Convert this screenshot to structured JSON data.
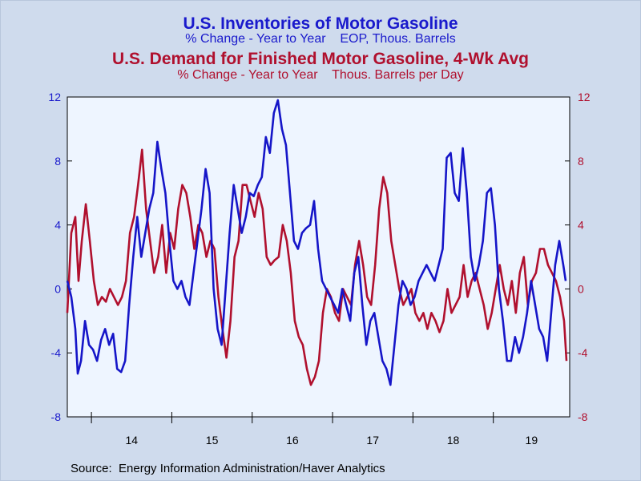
{
  "chart_data": {
    "type": "line",
    "title": "U.S. Inventories of Motor Gasoline",
    "title_subtitle": "% Change - Year to Year    EOP, Thous. Barrels",
    "title2": "U.S. Demand for Finished Motor Gasoline, 4-Wk Avg",
    "title2_subtitle": "% Change - Year to Year    Thous. Barrels per Day",
    "x_tick_labels": [
      "14",
      "15",
      "16",
      "17",
      "18",
      "19"
    ],
    "x_range": [
      2013.7,
      2019.95
    ],
    "y_left": {
      "range": [
        -8,
        12
      ],
      "ticks": [
        -8,
        -4,
        0,
        4,
        8,
        12
      ],
      "color": "#1a1acc"
    },
    "y_right": {
      "range": [
        -8,
        12
      ],
      "ticks": [
        -8,
        -4,
        0,
        4,
        8,
        12
      ],
      "color": "#b0102e"
    },
    "grid": false,
    "series": [
      {
        "color": "#1515c8",
        "axis": "left",
        "x": [
          2013.7,
          2013.75,
          2013.8,
          2013.83,
          2013.87,
          2013.92,
          2013.97,
          2014.02,
          2014.07,
          2014.12,
          2014.17,
          2014.22,
          2014.27,
          2014.32,
          2014.37,
          2014.42,
          2014.47,
          2014.52,
          2014.57,
          2014.62,
          2014.67,
          2014.72,
          2014.77,
          2014.82,
          2014.87,
          2014.92,
          2014.97,
          2015.02,
          2015.07,
          2015.12,
          2015.17,
          2015.22,
          2015.27,
          2015.32,
          2015.37,
          2015.42,
          2015.47,
          2015.52,
          2015.57,
          2015.62,
          2015.67,
          2015.72,
          2015.77,
          2015.82,
          2015.87,
          2015.92,
          2015.97,
          2016.02,
          2016.07,
          2016.12,
          2016.17,
          2016.22,
          2016.27,
          2016.32,
          2016.37,
          2016.42,
          2016.47,
          2016.52,
          2016.57,
          2016.62,
          2016.67,
          2016.72,
          2016.77,
          2016.82,
          2016.87,
          2016.92,
          2016.97,
          2017.02,
          2017.07,
          2017.12,
          2017.17,
          2017.22,
          2017.27,
          2017.32,
          2017.37,
          2017.42,
          2017.47,
          2017.52,
          2017.57,
          2017.62,
          2017.67,
          2017.72,
          2017.77,
          2017.82,
          2017.87,
          2017.92,
          2017.97,
          2018.02,
          2018.07,
          2018.12,
          2018.17,
          2018.22,
          2018.27,
          2018.32,
          2018.37,
          2018.42,
          2018.47,
          2018.52,
          2018.57,
          2018.62,
          2018.67,
          2018.72,
          2018.77,
          2018.82,
          2018.87,
          2018.92,
          2018.97,
          2019.02,
          2019.07,
          2019.12,
          2019.17,
          2019.22,
          2019.27,
          2019.32,
          2019.37,
          2019.42,
          2019.47,
          2019.52,
          2019.57,
          2019.62,
          2019.67,
          2019.72,
          2019.77,
          2019.82,
          2019.87,
          2019.9
        ],
        "values": [
          0.5,
          -0.5,
          -2.5,
          -5.3,
          -4.5,
          -2.0,
          -3.5,
          -3.8,
          -4.5,
          -3.2,
          -2.5,
          -3.5,
          -2.8,
          -5.0,
          -5.2,
          -4.5,
          -1.0,
          2.0,
          4.5,
          2.0,
          3.5,
          5.0,
          6.0,
          9.2,
          7.5,
          6.0,
          3.0,
          0.5,
          0.0,
          0.5,
          -0.5,
          -1.0,
          1.0,
          3.0,
          5.0,
          7.5,
          6.0,
          0.0,
          -2.5,
          -3.5,
          0.0,
          3.5,
          6.5,
          5.0,
          3.5,
          4.5,
          6.0,
          5.8,
          6.5,
          7.0,
          9.5,
          8.5,
          11.0,
          11.8,
          10.0,
          9.0,
          6.0,
          3.0,
          2.5,
          3.5,
          3.8,
          4.0,
          5.5,
          2.5,
          0.5,
          0.0,
          -0.5,
          -1.0,
          -1.5,
          0.0,
          -1.0,
          -2.0,
          1.0,
          2.0,
          -1.0,
          -3.5,
          -2.0,
          -1.5,
          -3.0,
          -4.5,
          -5.0,
          -6.0,
          -3.5,
          -1.0,
          0.5,
          0.0,
          -1.0,
          -0.5,
          0.5,
          1.0,
          1.5,
          1.0,
          0.5,
          1.5,
          2.5,
          8.2,
          8.5,
          6.0,
          5.5,
          8.8,
          6.0,
          2.0,
          0.5,
          1.5,
          3.0,
          6.0,
          6.3,
          4.0,
          0.0,
          -2.0,
          -4.5,
          -4.5,
          -3.0,
          -4.0,
          -3.0,
          -1.5,
          0.5,
          -1.0,
          -2.5,
          -3.0,
          -4.5,
          -1.5,
          1.5,
          3.0,
          1.5,
          0.5
        ]
      },
      {
        "color": "#b0102e",
        "axis": "right",
        "x": [
          2013.7,
          2013.75,
          2013.8,
          2013.84,
          2013.88,
          2013.93,
          2013.98,
          2014.03,
          2014.08,
          2014.13,
          2014.18,
          2014.23,
          2014.28,
          2014.33,
          2014.38,
          2014.43,
          2014.48,
          2014.53,
          2014.58,
          2014.63,
          2014.68,
          2014.73,
          2014.78,
          2014.83,
          2014.88,
          2014.93,
          2014.98,
          2015.03,
          2015.08,
          2015.13,
          2015.18,
          2015.23,
          2015.28,
          2015.33,
          2015.38,
          2015.43,
          2015.48,
          2015.53,
          2015.58,
          2015.63,
          2015.68,
          2015.73,
          2015.78,
          2015.83,
          2015.88,
          2015.93,
          2015.98,
          2016.03,
          2016.08,
          2016.13,
          2016.18,
          2016.23,
          2016.28,
          2016.33,
          2016.38,
          2016.43,
          2016.48,
          2016.53,
          2016.58,
          2016.63,
          2016.68,
          2016.73,
          2016.78,
          2016.83,
          2016.88,
          2016.93,
          2016.98,
          2017.03,
          2017.08,
          2017.13,
          2017.18,
          2017.23,
          2017.28,
          2017.33,
          2017.38,
          2017.43,
          2017.48,
          2017.53,
          2017.58,
          2017.63,
          2017.68,
          2017.73,
          2017.78,
          2017.83,
          2017.88,
          2017.93,
          2017.98,
          2018.03,
          2018.08,
          2018.13,
          2018.18,
          2018.23,
          2018.28,
          2018.33,
          2018.38,
          2018.43,
          2018.48,
          2018.53,
          2018.58,
          2018.63,
          2018.68,
          2018.73,
          2018.78,
          2018.83,
          2018.88,
          2018.93,
          2018.98,
          2019.03,
          2019.08,
          2019.13,
          2019.18,
          2019.23,
          2019.28,
          2019.33,
          2019.38,
          2019.43,
          2019.48,
          2019.53,
          2019.58,
          2019.63,
          2019.68,
          2019.73,
          2019.78,
          2019.83,
          2019.88,
          2019.91
        ],
        "values": [
          -1.5,
          3.5,
          4.5,
          0.5,
          3.0,
          5.3,
          3.0,
          0.5,
          -1.0,
          -0.5,
          -0.8,
          0.0,
          -0.5,
          -1.0,
          -0.5,
          0.5,
          3.5,
          4.5,
          6.5,
          8.7,
          5.0,
          3.0,
          1.0,
          2.0,
          4.0,
          1.0,
          3.5,
          2.5,
          5.0,
          6.5,
          6.0,
          4.5,
          2.5,
          4.0,
          3.5,
          2.0,
          3.0,
          2.5,
          -0.5,
          -2.5,
          -4.3,
          -2.0,
          2.0,
          3.0,
          6.5,
          6.5,
          5.5,
          4.5,
          6.0,
          5.0,
          2.0,
          1.5,
          1.8,
          2.0,
          4.0,
          3.0,
          1.0,
          -2.0,
          -3.0,
          -3.5,
          -5.0,
          -6.0,
          -5.5,
          -4.5,
          -1.5,
          0.0,
          -0.5,
          -1.5,
          -2.0,
          0.0,
          -0.5,
          -1.0,
          1.5,
          3.0,
          1.5,
          -0.5,
          -1.0,
          1.5,
          5.0,
          7.0,
          6.0,
          3.0,
          1.5,
          0.0,
          -1.0,
          -0.5,
          0.0,
          -1.5,
          -2.0,
          -1.5,
          -2.5,
          -1.5,
          -2.0,
          -2.7,
          -2.0,
          0.0,
          -1.5,
          -1.0,
          -0.5,
          1.5,
          -0.5,
          0.5,
          1.0,
          0.0,
          -1.0,
          -2.5,
          -1.5,
          0.0,
          1.5,
          0.0,
          -1.0,
          0.5,
          -1.5,
          1.0,
          2.0,
          -1.0,
          0.5,
          1.0,
          2.5,
          2.5,
          1.5,
          1.0,
          0.5,
          -0.5,
          -2.0,
          -4.5
        ]
      }
    ]
  },
  "source": "Source:  Energy Information Administration/Haver Analytics"
}
